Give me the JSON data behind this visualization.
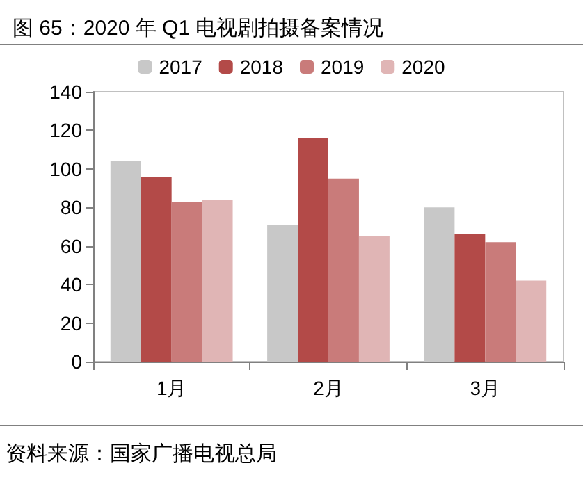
{
  "chart_data": {
    "type": "bar",
    "title": "图 65：2020 年 Q1 电视剧拍摄备案情况",
    "categories": [
      "1月",
      "2月",
      "3月"
    ],
    "series": [
      {
        "name": "2017",
        "color": "#c8c8c8",
        "values": [
          104,
          71,
          80
        ]
      },
      {
        "name": "2018",
        "color": "#b34a48",
        "values": [
          96,
          116,
          66
        ]
      },
      {
        "name": "2019",
        "color": "#c97b7a",
        "values": [
          83,
          95,
          62
        ]
      },
      {
        "name": "2020",
        "color": "#e0b5b5",
        "values": [
          84,
          65,
          42
        ]
      }
    ],
    "ylim": [
      0,
      140
    ],
    "yticks": [
      0,
      20,
      40,
      60,
      80,
      100,
      120,
      140
    ],
    "grid": false,
    "legend": "top",
    "annotations": [
      "资料来源：国家广播电视总局"
    ]
  }
}
